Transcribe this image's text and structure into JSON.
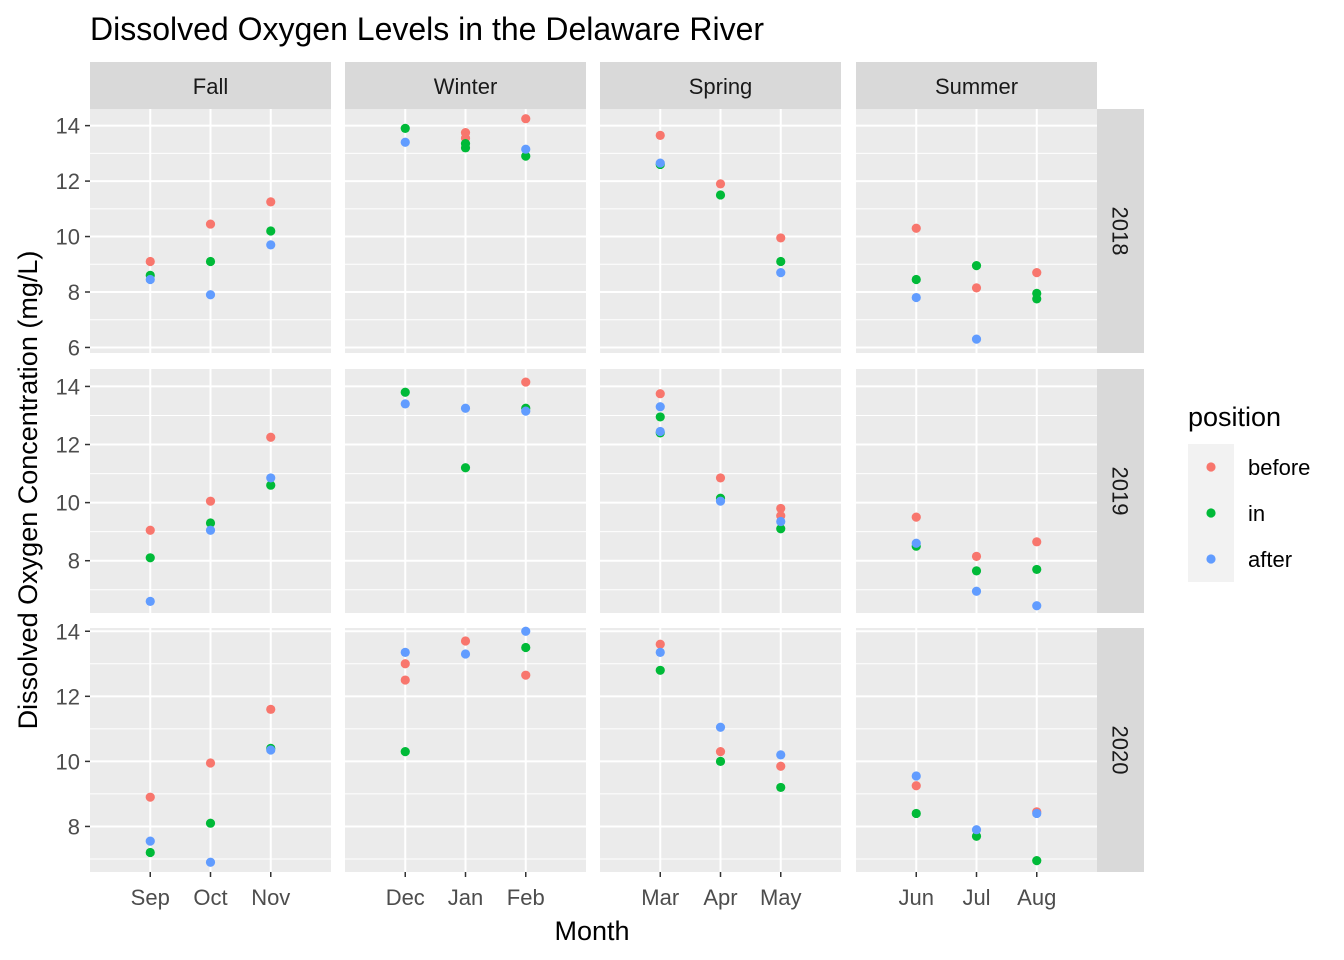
{
  "chart_data": {
    "type": "scatter",
    "title": "Dissolved Oxygen Levels in the Delaware River",
    "xlabel": "Month",
    "ylabel": "Dissolved Oxygen Concentration (mg/L)",
    "legend": {
      "title": "position",
      "placement": "right"
    },
    "series": [
      {
        "name": "before",
        "color": "#F8766D"
      },
      {
        "name": "in",
        "color": "#00BA38"
      },
      {
        "name": "after",
        "color": "#619CFF"
      }
    ],
    "columns": [
      {
        "season": "Fall",
        "months": [
          "Sep",
          "Oct",
          "Nov"
        ]
      },
      {
        "season": "Winter",
        "months": [
          "Dec",
          "Jan",
          "Feb"
        ]
      },
      {
        "season": "Spring",
        "months": [
          "Mar",
          "Apr",
          "May"
        ]
      },
      {
        "season": "Summer",
        "months": [
          "Jun",
          "Jul",
          "Aug"
        ]
      }
    ],
    "rows": [
      {
        "year": "2018",
        "ylim": [
          5.8,
          14.6
        ],
        "yticks": [
          6,
          8,
          10,
          12,
          14
        ],
        "values": {
          "Sep": {
            "before": [
              9.1
            ],
            "in": [
              8.6
            ],
            "after": [
              8.45
            ]
          },
          "Oct": {
            "before": [
              10.45
            ],
            "in": [
              9.1
            ],
            "after": [
              7.9
            ]
          },
          "Nov": {
            "before": [
              11.25
            ],
            "in": [
              10.2
            ],
            "after": [
              9.7
            ]
          },
          "Dec": {
            "before": [],
            "in": [
              13.9
            ],
            "after": [
              13.4
            ]
          },
          "Jan": {
            "before": [
              13.75,
              13.55
            ],
            "in": [
              13.35,
              13.2
            ],
            "after": []
          },
          "Feb": {
            "before": [
              14.25
            ],
            "in": [
              12.9
            ],
            "after": [
              13.15
            ]
          },
          "Mar": {
            "before": [
              13.65
            ],
            "in": [
              12.6
            ],
            "after": [
              12.65
            ]
          },
          "Apr": {
            "before": [
              11.9
            ],
            "in": [
              11.5
            ],
            "after": []
          },
          "May": {
            "before": [
              9.95
            ],
            "in": [
              9.1
            ],
            "after": [
              8.7
            ]
          },
          "Jun": {
            "before": [
              10.3
            ],
            "in": [
              8.45
            ],
            "after": [
              7.8
            ]
          },
          "Jul": {
            "before": [
              8.15
            ],
            "in": [
              8.95
            ],
            "after": [
              6.3
            ]
          },
          "Aug": {
            "before": [
              8.7
            ],
            "in": [
              7.95,
              7.75
            ],
            "after": []
          }
        }
      },
      {
        "year": "2019",
        "ylim": [
          6.2,
          14.6
        ],
        "yticks": [
          8,
          10,
          12,
          14
        ],
        "values": {
          "Sep": {
            "before": [
              9.05
            ],
            "in": [
              8.1
            ],
            "after": [
              6.6
            ]
          },
          "Oct": {
            "before": [
              10.05
            ],
            "in": [
              9.3
            ],
            "after": [
              9.05
            ]
          },
          "Nov": {
            "before": [
              12.25
            ],
            "in": [
              10.6
            ],
            "after": [
              10.85
            ]
          },
          "Dec": {
            "before": [],
            "in": [
              13.8
            ],
            "after": [
              13.4
            ]
          },
          "Jan": {
            "before": [],
            "in": [
              11.2
            ],
            "after": [
              13.25
            ]
          },
          "Feb": {
            "before": [
              14.15
            ],
            "in": [
              13.25
            ],
            "after": [
              13.15
            ]
          },
          "Mar": {
            "before": [
              13.75
            ],
            "in": [
              12.95,
              12.4
            ],
            "after": [
              13.3,
              12.45
            ]
          },
          "Apr": {
            "before": [
              10.85
            ],
            "in": [
              10.15
            ],
            "after": [
              10.05
            ]
          },
          "May": {
            "before": [
              9.8,
              9.55
            ],
            "in": [
              9.1
            ],
            "after": [
              9.35
            ]
          },
          "Jun": {
            "before": [
              9.5
            ],
            "in": [
              8.5
            ],
            "after": [
              8.6
            ]
          },
          "Jul": {
            "before": [
              8.15
            ],
            "in": [
              7.65
            ],
            "after": [
              6.95
            ]
          },
          "Aug": {
            "before": [
              8.65
            ],
            "in": [
              7.7
            ],
            "after": [
              6.45
            ]
          }
        }
      },
      {
        "year": "2020",
        "ylim": [
          6.6,
          14.1
        ],
        "yticks": [
          8,
          10,
          12,
          14
        ],
        "values": {
          "Sep": {
            "before": [
              8.9
            ],
            "in": [
              7.2
            ],
            "after": [
              7.55
            ]
          },
          "Oct": {
            "before": [
              9.95
            ],
            "in": [
              8.1
            ],
            "after": [
              6.9
            ]
          },
          "Nov": {
            "before": [
              11.6
            ],
            "in": [
              10.4
            ],
            "after": [
              10.35
            ]
          },
          "Dec": {
            "before": [
              13.0,
              12.5
            ],
            "in": [
              10.3
            ],
            "after": [
              13.35
            ]
          },
          "Jan": {
            "before": [
              13.7
            ],
            "in": [],
            "after": [
              13.3
            ]
          },
          "Feb": {
            "before": [
              12.65
            ],
            "in": [
              13.5
            ],
            "after": [
              14.0
            ]
          },
          "Mar": {
            "before": [
              13.6
            ],
            "in": [
              12.8
            ],
            "after": [
              13.35
            ]
          },
          "Apr": {
            "before": [
              10.3
            ],
            "in": [
              10.0
            ],
            "after": [
              11.05
            ]
          },
          "May": {
            "before": [
              9.85
            ],
            "in": [
              9.2
            ],
            "after": [
              10.2
            ]
          },
          "Jun": {
            "before": [
              9.25
            ],
            "in": [
              8.4
            ],
            "after": [
              9.55
            ]
          },
          "Jul": {
            "before": [],
            "in": [
              7.7
            ],
            "after": [
              7.9
            ]
          },
          "Aug": {
            "before": [
              8.45
            ],
            "in": [
              6.95
            ],
            "after": [
              8.4
            ]
          }
        }
      }
    ]
  }
}
